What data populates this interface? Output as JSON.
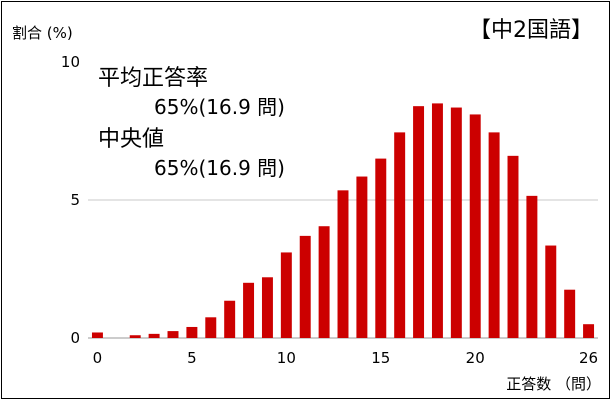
{
  "chart_data": {
    "type": "bar",
    "title": "【中2国語】",
    "xlabel": "正答数 （問）",
    "ylabel": "割合 (%)",
    "x": [
      0,
      1,
      2,
      3,
      4,
      5,
      6,
      7,
      8,
      9,
      10,
      11,
      12,
      13,
      14,
      15,
      16,
      17,
      18,
      19,
      20,
      21,
      22,
      23,
      24,
      25,
      26
    ],
    "values": [
      0.2,
      0,
      0.1,
      0.15,
      0.25,
      0.4,
      0.75,
      1.35,
      2.0,
      2.2,
      3.1,
      3.7,
      4.05,
      5.35,
      5.85,
      6.5,
      7.45,
      8.4,
      8.5,
      8.35,
      8.1,
      7.45,
      6.6,
      5.15,
      3.35,
      1.75,
      0.5
    ],
    "ylim": [
      0,
      10
    ],
    "xlim": [
      -0.5,
      26.5
    ],
    "y_ticks": [
      {
        "value": 0,
        "label": "0"
      },
      {
        "value": 5,
        "label": "5"
      },
      {
        "value": 10,
        "label": "10"
      }
    ],
    "x_ticks": [
      {
        "value": 0,
        "label": "0"
      },
      {
        "value": 5,
        "label": "5"
      },
      {
        "value": 10,
        "label": "10"
      },
      {
        "value": 15,
        "label": "15"
      },
      {
        "value": 20,
        "label": "20"
      },
      {
        "value": 26,
        "label": "26"
      }
    ],
    "grid": true,
    "bar_color": "#cc0000",
    "annotations": {
      "mean_label": "平均正答率",
      "mean_value": "65%(16.9 問)",
      "median_label": "中央値",
      "median_value": "65%(16.9 問)"
    }
  }
}
